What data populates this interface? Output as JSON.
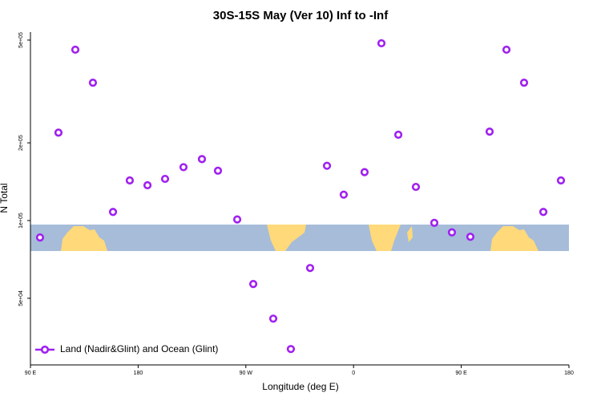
{
  "chart_data": {
    "type": "scatter",
    "title": "30S-15S May (Ver 10)   Inf to -Inf",
    "x_label": "Longitude (deg E)",
    "y_label": "N Total",
    "log_y": true,
    "xlim": [
      90,
      540
    ],
    "ylim": [
      27600,
      537000
    ],
    "xticks": [
      {
        "value": 90,
        "label": "90 E"
      },
      180,
      {
        "value": 270,
        "label": "90 W"
      },
      {
        "value": 360,
        "label": "0"
      },
      {
        "value": 450,
        "label": "90 E"
      },
      {
        "value": 540,
        "label": "180"
      }
    ],
    "yticks": [
      {
        "value": 50000,
        "label": "5e+04"
      },
      {
        "value": 100000,
        "label": "1e+05"
      },
      {
        "value": 200000,
        "label": "2e+05"
      },
      {
        "value": 500000,
        "label": "5e+05"
      }
    ],
    "legend": "bottom-left",
    "series": [
      {
        "name": "Land (Nadir&Glint) and Ocean (Glint)",
        "color": "#a020f0",
        "x": [
          98,
          113.4,
          127.5,
          142.2,
          159,
          173,
          187.8,
          202.5,
          217.9,
          233.3,
          246.7,
          262.8,
          276.2,
          292.9,
          307.6,
          323.7,
          337.8,
          351.8,
          369.2,
          383.3,
          397.4,
          412.1,
          427.5,
          442.2,
          457.6,
          473.7,
          487.8,
          502.5,
          518.6,
          533.3
        ],
        "values": [
          86000,
          219000,
          459000,
          342000,
          108000,
          143000,
          137000,
          145000,
          161000,
          173000,
          156000,
          101000,
          56800,
          41700,
          31800,
          65500,
          163000,
          126000,
          154000,
          486000,
          215000,
          135000,
          98000,
          90000,
          86500,
          221000,
          459000,
          342000,
          108000,
          143000
        ]
      }
    ]
  }
}
